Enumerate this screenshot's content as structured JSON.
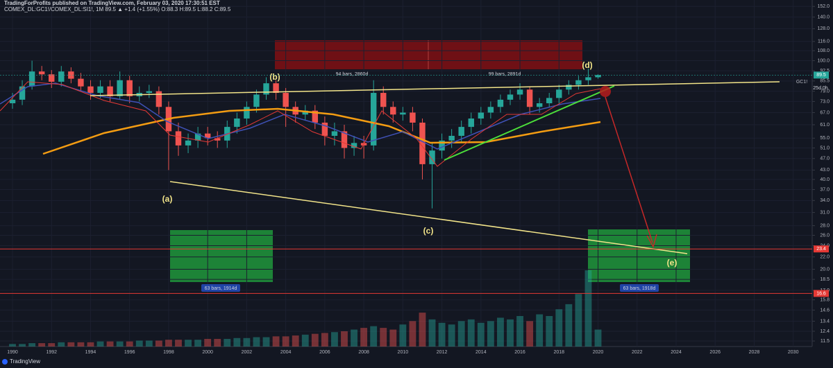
{
  "chart_data": {
    "type": "candlestick",
    "header": {
      "author_line": "TradingForProfits published on TradingView.com, February 03, 2020 17:30:51 EST",
      "symbol_line": "COMEX_DL:GC1!/COMEX_DL:SI1!, 1M  89.5 ▲ +1.4 (+1.55%) O:88.3 H:89.5 L:88.2 C:89.5"
    },
    "x": [
      1990,
      1990.5,
      1991,
      1991.5,
      1992,
      1992.5,
      1993,
      1993.5,
      1994,
      1994.5,
      1995,
      1995.5,
      1996,
      1996.5,
      1997,
      1997.5,
      1998,
      1998.5,
      1999,
      1999.5,
      2000,
      2000.5,
      2001,
      2001.5,
      2002,
      2002.5,
      2003,
      2003.5,
      2004,
      2004.5,
      2005,
      2005.5,
      2006,
      2006.5,
      2007,
      2007.5,
      2008,
      2008.5,
      2009,
      2009.5,
      2010,
      2010.5,
      2011,
      2011.5,
      2012,
      2012.5,
      2013,
      2013.5,
      2014,
      2014.5,
      2015,
      2015.5,
      2016,
      2016.5,
      2017,
      2017.5,
      2018,
      2018.5,
      2019,
      2019.5,
      2020
    ],
    "open": [
      72,
      74,
      82,
      92,
      90,
      85,
      92,
      87,
      82,
      78,
      82,
      76,
      86,
      76,
      78,
      79,
      70,
      58,
      52,
      54,
      57,
      55,
      54,
      60,
      64,
      70,
      77,
      84,
      78,
      70,
      66,
      68,
      62,
      56,
      58,
      51,
      53,
      52,
      78,
      70,
      66,
      67,
      62,
      45,
      50,
      54,
      56,
      60,
      64,
      67,
      70,
      74,
      77,
      80,
      70,
      72,
      75,
      80,
      83,
      86,
      88
    ],
    "high": [
      78,
      86,
      100,
      96,
      93,
      96,
      95,
      91,
      86,
      86,
      86,
      92,
      89,
      82,
      83,
      82,
      73,
      62,
      57,
      60,
      60,
      58,
      63,
      67,
      73,
      80,
      88,
      86,
      81,
      73,
      71,
      71,
      65,
      62,
      61,
      56,
      56,
      86,
      82,
      73,
      70,
      70,
      64,
      53,
      57,
      59,
      63,
      67,
      70,
      73,
      77,
      80,
      84,
      82,
      75,
      78,
      83,
      86,
      89,
      94,
      90
    ],
    "low": [
      69,
      71,
      80,
      86,
      81,
      82,
      84,
      79,
      74,
      75,
      73,
      74,
      72,
      73,
      75,
      66,
      43,
      48,
      49,
      51,
      52,
      51,
      51,
      57,
      61,
      67,
      74,
      74,
      60,
      62,
      63,
      59,
      52,
      52,
      47,
      48,
      47,
      50,
      66,
      62,
      63,
      58,
      40,
      32,
      47,
      51,
      53,
      57,
      61,
      64,
      67,
      71,
      74,
      66,
      67,
      70,
      72,
      77,
      80,
      83,
      87
    ],
    "close": [
      74,
      82,
      92,
      90,
      85,
      92,
      87,
      82,
      78,
      82,
      76,
      86,
      76,
      78,
      79,
      70,
      58,
      52,
      54,
      57,
      55,
      54,
      60,
      64,
      70,
      77,
      84,
      78,
      70,
      66,
      68,
      62,
      56,
      58,
      51,
      53,
      52,
      78,
      70,
      66,
      67,
      62,
      45,
      50,
      54,
      56,
      60,
      64,
      67,
      70,
      74,
      77,
      80,
      70,
      72,
      75,
      80,
      83,
      86,
      88,
      89.5
    ],
    "volume": [
      3,
      3,
      4,
      4,
      4,
      5,
      5,
      5,
      5,
      6,
      6,
      6,
      6,
      7,
      7,
      7,
      8,
      8,
      8,
      8,
      9,
      9,
      9,
      10,
      10,
      11,
      11,
      12,
      12,
      13,
      14,
      15,
      16,
      17,
      18,
      20,
      22,
      24,
      22,
      20,
      26,
      30,
      40,
      32,
      28,
      26,
      30,
      32,
      28,
      30,
      34,
      32,
      36,
      30,
      38,
      36,
      44,
      50,
      62,
      90,
      20
    ],
    "up_color": "#26a69a",
    "down_color": "#ef5350",
    "log_scale": true,
    "xlim": [
      1989.36,
      2030.9
    ],
    "xticks": [
      1990,
      1992,
      1994,
      1996,
      1998,
      2000,
      2002,
      2004,
      2006,
      2008,
      2010,
      2012,
      2014,
      2016,
      2018,
      2020,
      2022,
      2024,
      2026,
      2028,
      2030
    ],
    "ylim": [
      11.2,
      158
    ],
    "yticks": [
      {
        "value": 152,
        "label": "152.0"
      },
      {
        "value": 140,
        "label": "140.0"
      },
      {
        "value": 128,
        "label": "128.0"
      },
      {
        "value": 116,
        "label": "116.0"
      },
      {
        "value": 108,
        "label": "108.0"
      },
      {
        "value": 100,
        "label": "100.0"
      },
      92.5,
      85.5,
      {
        "value": 79,
        "label": "79.0"
      },
      {
        "value": 73,
        "label": "73.0"
      },
      {
        "value": 67,
        "label": "67.0"
      },
      {
        "value": 61,
        "label": "61.0"
      },
      {
        "value": 55,
        "label": "55.0"
      },
      {
        "value": 51,
        "label": "51.0"
      },
      {
        "value": 47,
        "label": "47.0"
      },
      {
        "value": 43,
        "label": "43.0"
      },
      {
        "value": 40,
        "label": "40.0"
      },
      {
        "value": 37,
        "label": "37.0"
      },
      {
        "value": 34,
        "label": "34.0"
      },
      {
        "value": 31,
        "label": "31.0"
      },
      {
        "value": 28,
        "label": "28.0"
      },
      {
        "value": 26,
        "label": "26.0"
      },
      {
        "value": 24,
        "label": "24.0"
      },
      {
        "value": 22,
        "label": "22.0"
      },
      {
        "value": 20,
        "label": "20.0"
      },
      18.5,
      {
        "value": 17,
        "label": "17.0"
      },
      15.8,
      14.6,
      13.4,
      12.4,
      11.5
    ],
    "price_labels": [
      {
        "value": 89.5,
        "label": "89.5",
        "color": "#26a69a"
      },
      {
        "value": 23.4,
        "label": "23.4",
        "color": "#e53935"
      },
      {
        "value": 16.6,
        "label": "16.6",
        "color": "#e53935"
      }
    ],
    "countdown": "25d 0h",
    "symbol_tag": "GC1!",
    "wave_labels": [
      "(a)",
      "(b)",
      "(c)",
      "(d)",
      "(e)"
    ],
    "range_labels": [
      "94 bars, 2860d",
      "99 bars, 2891d",
      "63 bars, 1914d",
      "63 bars, 1918d"
    ],
    "footer": "TradingView"
  }
}
